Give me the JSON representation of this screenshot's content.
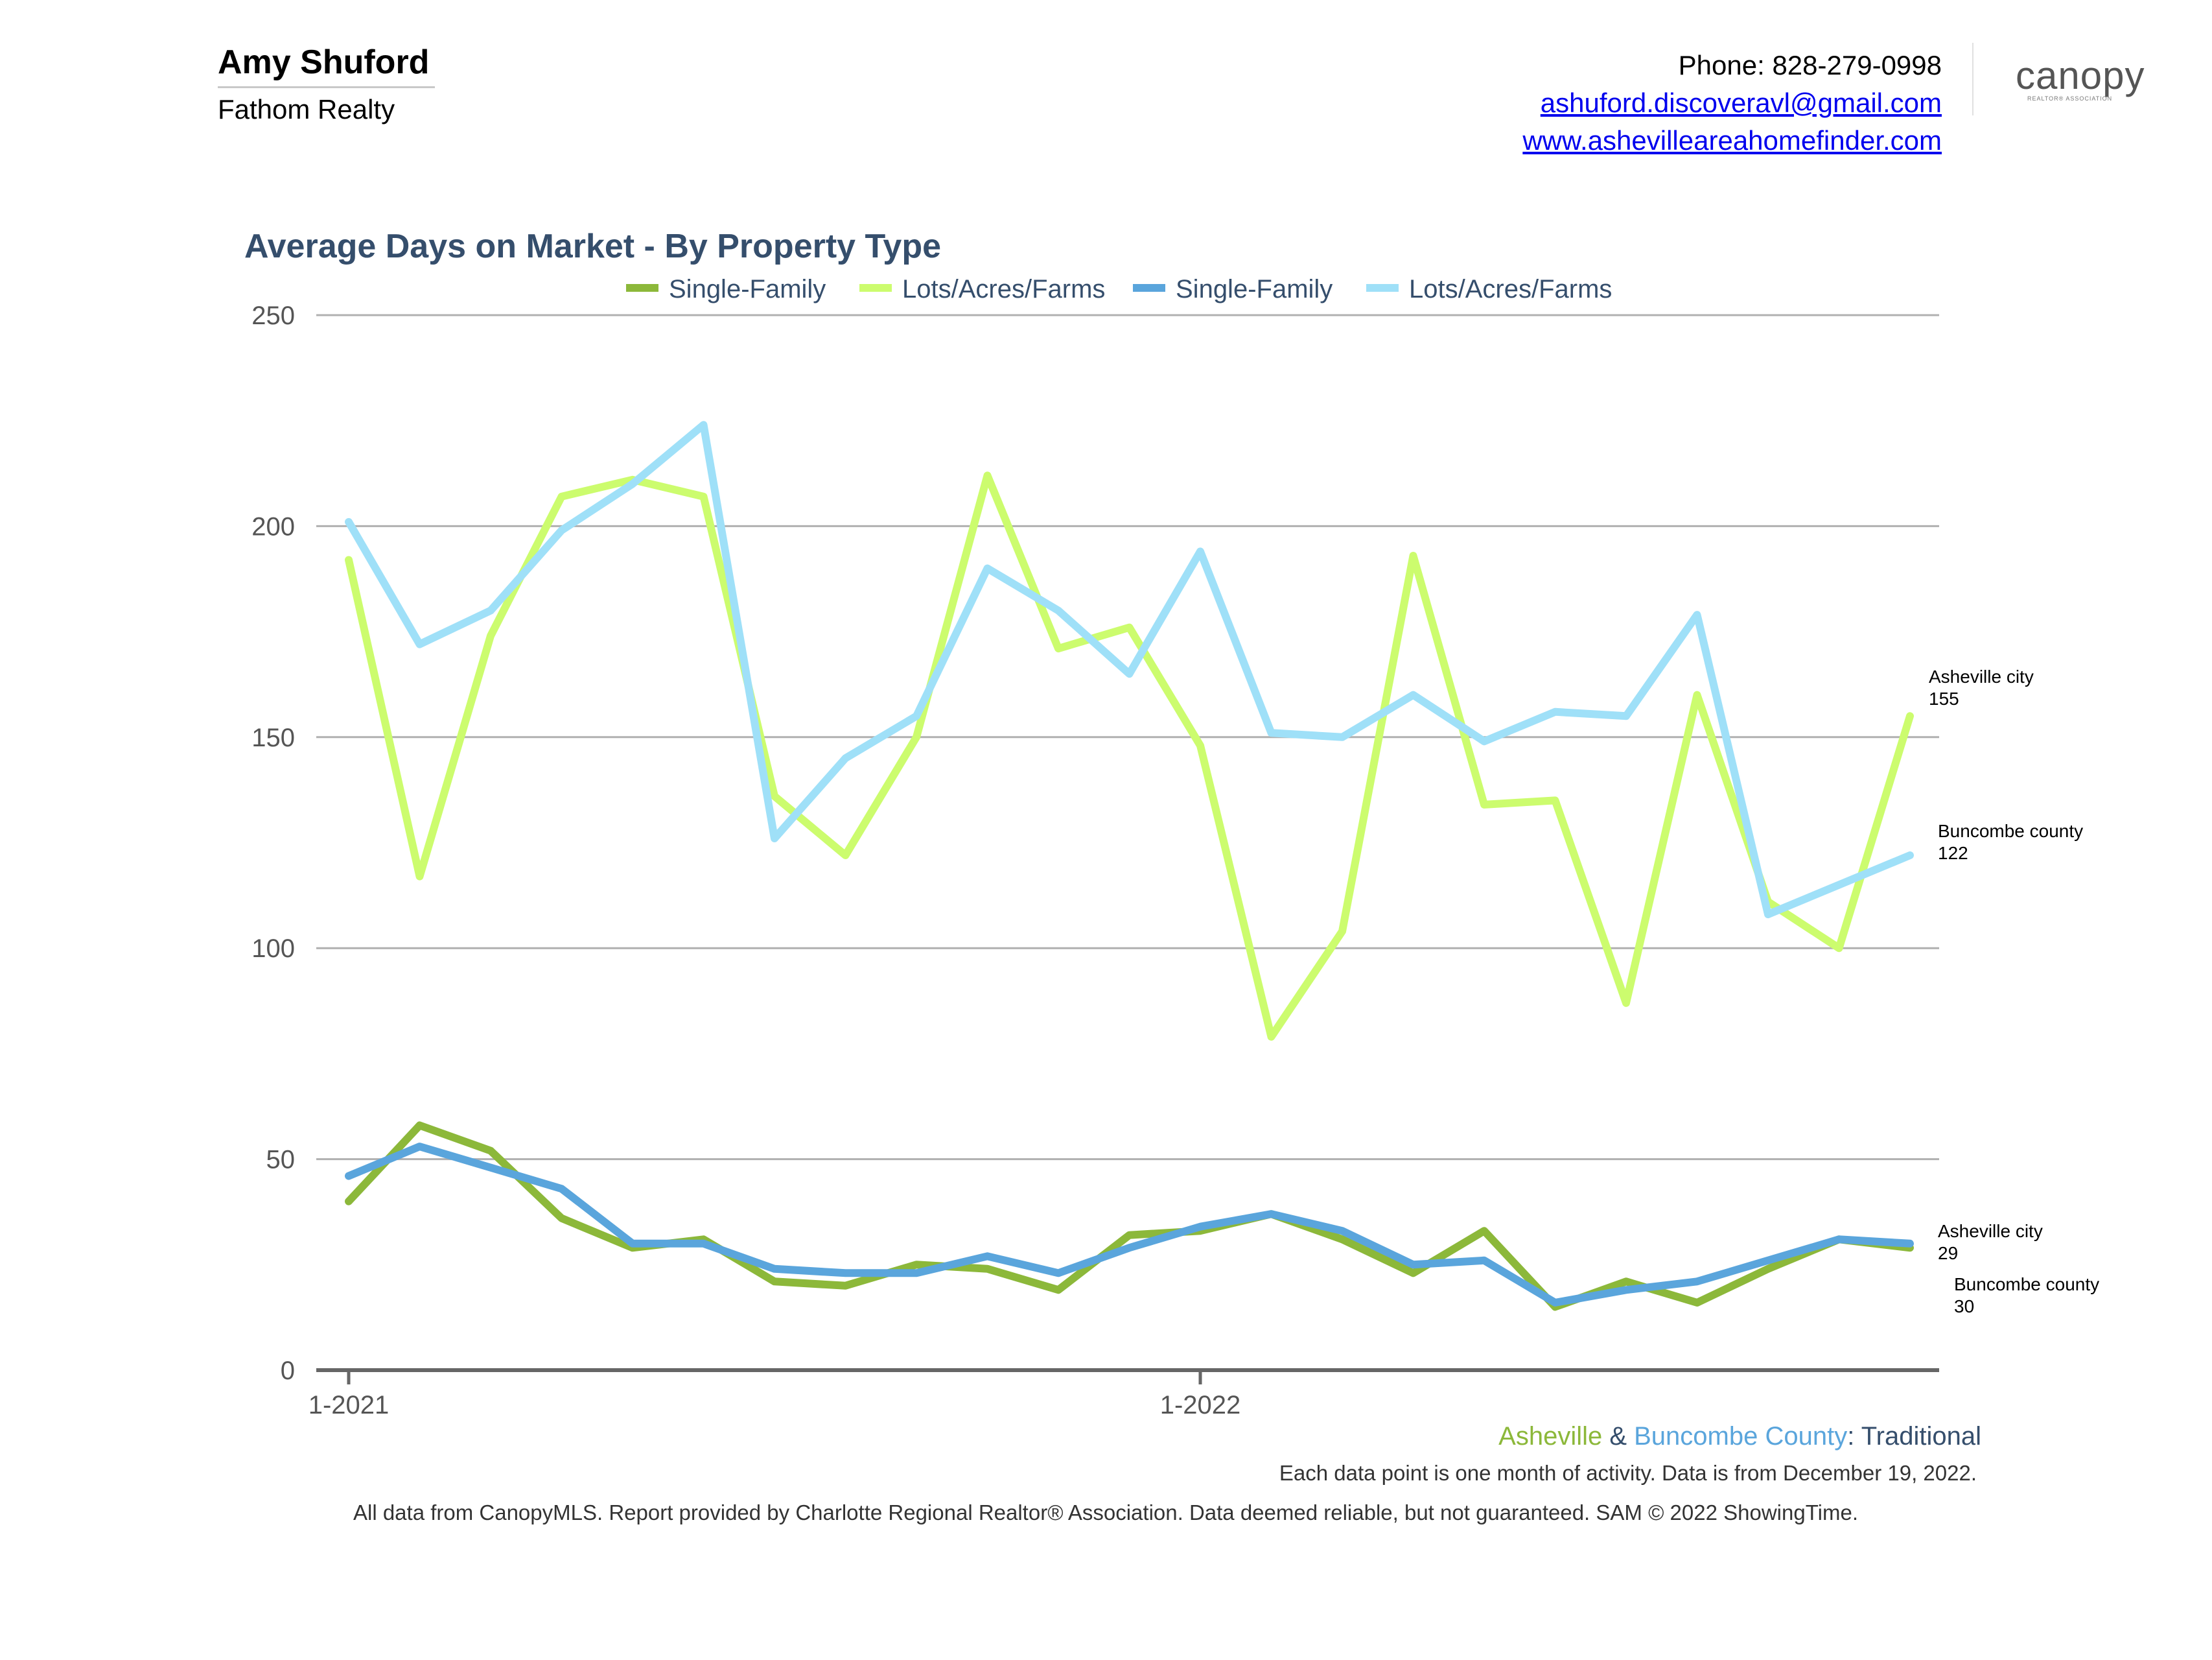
{
  "header": {
    "agent_name": "Amy Shuford",
    "company": "Fathom Realty",
    "phone": "Phone: 828-279-0998",
    "email": "ashuford.discoveravl@gmail.com",
    "website": "www.ashevilleareahomefinder.com",
    "logo_text": "canopy",
    "logo_subtext": "REALTOR® ASSOCIATION"
  },
  "colors": {
    "asheville_single_family": "#8cb83a",
    "asheville_lots": "#ccfc6e",
    "buncombe_single_family": "#5aa5dc",
    "buncombe_lots": "#9fe0f8",
    "title": "#354e6c",
    "grid": "#b0b0b0"
  },
  "chart_data": {
    "type": "line",
    "title": "Average Days on Market - By Property Type",
    "xlabel": "",
    "ylabel": "",
    "ylim": [
      0,
      250
    ],
    "y_ticks": [
      "0",
      "50",
      "100",
      "150",
      "200",
      "250"
    ],
    "x_tick_labels": [
      {
        "label": "1-2021",
        "index": 0
      },
      {
        "label": "1-2022",
        "index": 12
      }
    ],
    "grid": true,
    "legend_position": "top",
    "series": [
      {
        "name": "Single-Family",
        "area": "Asheville",
        "color": "#8cb83a",
        "values": [
          40,
          58,
          52,
          36,
          29,
          31,
          21,
          20,
          25,
          24,
          19,
          32,
          33,
          37,
          31,
          23,
          33,
          15,
          21,
          16,
          24,
          31,
          29
        ]
      },
      {
        "name": "Lots/Acres/Farms",
        "area": "Asheville",
        "color": "#ccfc6e",
        "values": [
          192,
          117,
          174,
          207,
          211,
          207,
          136,
          122,
          150,
          212,
          171,
          176,
          148,
          79,
          104,
          193,
          134,
          135,
          87,
          160,
          111,
          100,
          155
        ]
      },
      {
        "name": "Single-Family",
        "area": "Buncombe",
        "color": "#5aa5dc",
        "values": [
          46,
          53,
          48,
          43,
          30,
          30,
          24,
          23,
          23,
          27,
          23,
          29,
          34,
          37,
          33,
          25,
          26,
          16,
          19,
          21,
          26,
          31,
          30
        ]
      },
      {
        "name": "Lots/Acres/Farms",
        "area": "Buncombe",
        "color": "#9fe0f8",
        "values": [
          201,
          172,
          180,
          199,
          210,
          224,
          126,
          145,
          155,
          190,
          180,
          165,
          194,
          151,
          150,
          160,
          149,
          156,
          155,
          179,
          108,
          115,
          122
        ]
      }
    ],
    "end_labels": [
      {
        "name": "Asheville city",
        "value": "155"
      },
      {
        "name": "Buncombe county",
        "value": "122"
      },
      {
        "name": "Asheville city",
        "value": "29"
      },
      {
        "name": "Buncombe county",
        "value": "30"
      }
    ]
  },
  "footer": {
    "asheville": "Asheville",
    "amp": " & ",
    "buncombe": "Buncombe County",
    "traditional": ": Traditional",
    "note": "Each data point is one month of activity. Data is from December 19, 2022.",
    "disclaimer": "All data from CanopyMLS. Report provided by Charlotte Regional Realtor® Association. Data deemed reliable, but not guaranteed. SAM © 2022 ShowingTime."
  }
}
